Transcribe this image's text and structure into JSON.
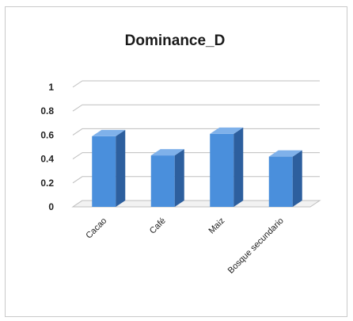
{
  "chart_data": {
    "type": "bar",
    "title": "Dominance_D",
    "xlabel": "",
    "ylabel": "",
    "categories": [
      "Cacao",
      "Café",
      "Maiz",
      "Bosque secundario"
    ],
    "series": [
      {
        "values": [
          0.59,
          0.43,
          0.61,
          0.42
        ]
      }
    ],
    "ylim": [
      0,
      1
    ],
    "yticks": [
      "0",
      "0.2",
      "0.4",
      "0.6",
      "0.8",
      "1"
    ],
    "grid": true,
    "legend": "none",
    "style": "3d-column",
    "colors": {
      "bar_front": "#4a8fdc",
      "bar_side": "#2d5f9e",
      "bar_top": "#7fb1ea",
      "grid": "#bfbfbf"
    }
  }
}
